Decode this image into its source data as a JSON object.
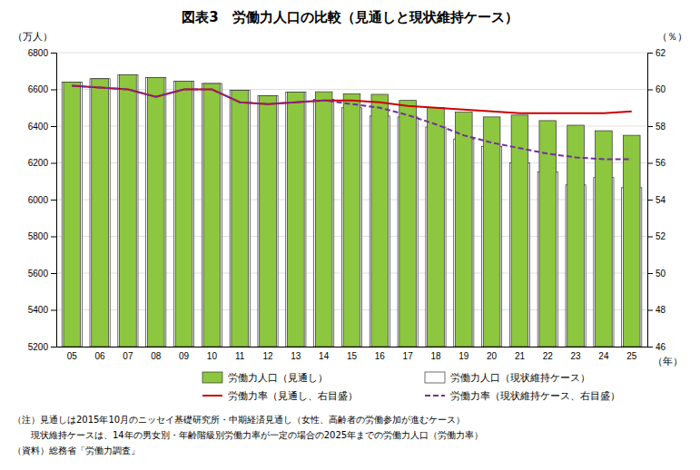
{
  "chart_data": {
    "type": "bar",
    "title": "図表3　労働力人口の比較（見通しと現状維持ケース）",
    "xlabel": "（年）",
    "ylabel": "（万人）",
    "y2label": "（％）",
    "categories": [
      "05",
      "06",
      "07",
      "08",
      "09",
      "10",
      "11",
      "12",
      "13",
      "14",
      "15",
      "16",
      "17",
      "18",
      "19",
      "20",
      "21",
      "22",
      "23",
      "24",
      "25"
    ],
    "series": [
      {
        "name": "労働力人口（見通し）",
        "type": "bar",
        "color": "#8DC63F",
        "values": [
          6640,
          6658,
          6680,
          6665,
          6645,
          6632,
          6595,
          6565,
          6585,
          6587,
          6576,
          6573,
          6540,
          6502,
          6476,
          6450,
          6460,
          6430,
          6405,
          6375,
          6350
        ]
      },
      {
        "name": "労働力人口（現状維持ケース）",
        "type": "bar",
        "color": "#FFFFFF",
        "values": [
          6640,
          6658,
          6680,
          6665,
          6645,
          6632,
          6595,
          6565,
          6585,
          6545,
          6500,
          6455,
          6450,
          6395,
          6330,
          6290,
          6200,
          6150,
          6080,
          6120,
          6065
        ]
      },
      {
        "name": "労働力率（見通し、右目盛）",
        "type": "line",
        "axis": "y2",
        "color": "#CC0000",
        "line_style": "solid",
        "values": [
          60.2,
          60.1,
          60.0,
          59.6,
          60.0,
          60.0,
          59.3,
          59.2,
          59.3,
          59.4,
          59.4,
          59.3,
          59.1,
          59.0,
          58.9,
          58.8,
          58.7,
          58.7,
          58.7,
          58.7,
          58.8
        ]
      },
      {
        "name": "労働力率（現状維持ケース、右目盛）",
        "type": "line",
        "axis": "y2",
        "color": "#7030A0",
        "line_style": "dashed",
        "values": [
          60.2,
          60.1,
          60.0,
          59.6,
          60.0,
          60.0,
          59.3,
          59.2,
          59.3,
          59.4,
          59.2,
          59.0,
          58.6,
          58.1,
          57.5,
          57.1,
          56.8,
          56.5,
          56.3,
          56.2,
          56.2
        ]
      }
    ],
    "ylim": [
      5200,
      6800
    ],
    "yticks": [
      5200,
      5400,
      5600,
      5800,
      6000,
      6200,
      6400,
      6600,
      6800
    ],
    "y2lim": [
      46,
      62
    ],
    "y2ticks": [
      46,
      48,
      50,
      52,
      54,
      56,
      58,
      60,
      62
    ],
    "grid": true,
    "legend": "lower right",
    "annotations": [
      "（注）見通しは2015年10月のニッセイ基礎研究所・中期経済見通し（女性、高齢者の労働参加が進むケース）",
      "　　現状維持ケースは、14年の男女別・年齢階級別労働力率が一定の場合の2025年までの労働力人口（労働力率）",
      "（資料）総務省「労働力調査」"
    ]
  }
}
